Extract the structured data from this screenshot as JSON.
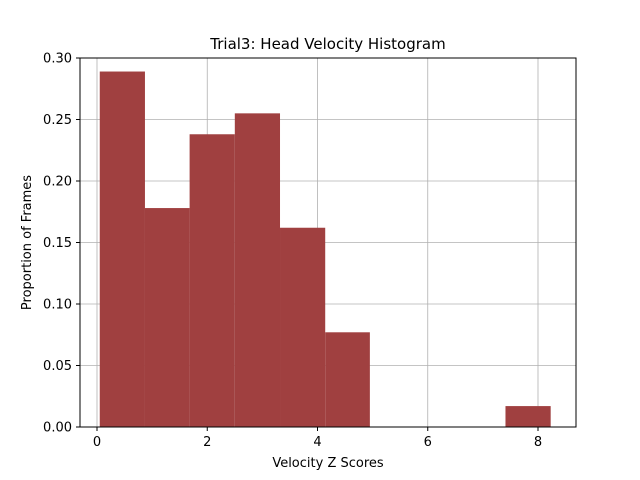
{
  "chart_data": {
    "type": "bar",
    "subtype": "histogram",
    "title": "Trial3: Head Velocity Histogram",
    "xlabel": "Velocity Z Scores",
    "ylabel": "Proportion of Frames",
    "xlim": [
      -0.3,
      7.5
    ],
    "ylim": [
      0,
      0.3
    ],
    "xticks": [
      0,
      2,
      4,
      6,
      8
    ],
    "yticks": [
      0.0,
      0.05,
      0.1,
      0.15,
      0.2,
      0.25,
      0.3
    ],
    "grid": true,
    "bar_color": "#a04040",
    "bins": [
      {
        "x0": 0.05,
        "x1": 0.87,
        "value": 0.289
      },
      {
        "x0": 0.87,
        "x1": 1.68,
        "value": 0.178
      },
      {
        "x0": 1.68,
        "x1": 2.5,
        "value": 0.238
      },
      {
        "x0": 2.5,
        "x1": 3.32,
        "value": 0.255
      },
      {
        "x0": 3.32,
        "x1": 4.14,
        "value": 0.162
      },
      {
        "x0": 4.14,
        "x1": 4.95,
        "value": 0.077
      },
      {
        "x0": 4.95,
        "x1": 5.77,
        "value": 0.0
      },
      {
        "x0": 5.77,
        "x1": 6.59,
        "value": 0.0
      },
      {
        "x0": 6.59,
        "x1": 7.41,
        "value": 0.0
      },
      {
        "x0": 7.41,
        "x1": 8.23,
        "value": 0.017
      }
    ]
  }
}
